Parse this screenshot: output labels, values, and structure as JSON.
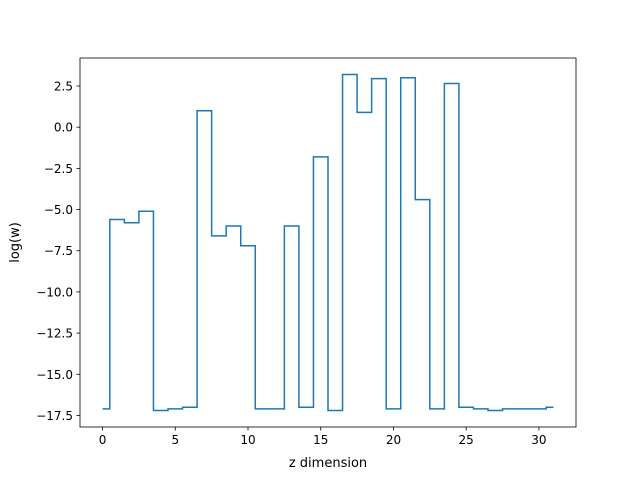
{
  "chart_data": {
    "type": "line",
    "drawstyle": "steps-mid",
    "title": "",
    "xlabel": "z dimension",
    "ylabel": "log(w)",
    "xlim": [
      -1.55,
      32.55
    ],
    "ylim": [
      -18.2,
      4.2
    ],
    "xticks": [
      0,
      5,
      10,
      15,
      20,
      25,
      30
    ],
    "yticks": [
      2.5,
      0.0,
      -2.5,
      -5.0,
      -7.5,
      -10.0,
      -12.5,
      -15.0,
      -17.5
    ],
    "ytick_labels": [
      "2.5",
      "0.0",
      "−2.5",
      "−5.0",
      "−7.5",
      "−10.0",
      "−12.5",
      "−15.0",
      "−17.5"
    ],
    "grid": false,
    "legend": "none",
    "series": [
      {
        "color": "#1f77b4",
        "x": [
          0,
          1,
          2,
          3,
          4,
          5,
          6,
          7,
          8,
          9,
          10,
          11,
          12,
          13,
          14,
          15,
          16,
          17,
          18,
          19,
          20,
          21,
          22,
          23,
          24,
          25,
          26,
          27,
          28,
          29,
          30,
          31
        ],
        "y": [
          -17.1,
          -5.6,
          -5.8,
          -5.1,
          -17.2,
          -17.1,
          -17.0,
          1.0,
          -6.6,
          -6.0,
          -7.2,
          -17.1,
          -17.1,
          -6.0,
          -17.0,
          -1.8,
          -17.2,
          3.2,
          0.9,
          2.95,
          -17.1,
          3.0,
          -4.4,
          -17.1,
          2.65,
          -17.0,
          -17.1,
          -17.2,
          -17.1,
          -17.1,
          -17.1,
          -17.0
        ]
      }
    ]
  }
}
